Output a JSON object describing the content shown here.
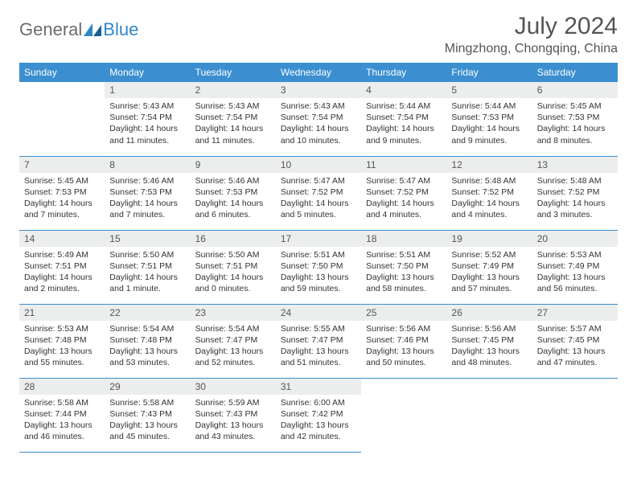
{
  "brand": {
    "text1": "General",
    "text2": "Blue"
  },
  "title": "July 2024",
  "location": "Mingzhong, Chongqing, China",
  "colors": {
    "header_bg": "#3b8fd0",
    "header_text": "#ffffff",
    "daynum_bg": "#eceded",
    "border": "#3b8fd0",
    "title_color": "#555555",
    "body_text": "#333333"
  },
  "weekdays": [
    "Sunday",
    "Monday",
    "Tuesday",
    "Wednesday",
    "Thursday",
    "Friday",
    "Saturday"
  ],
  "weeks": [
    [
      {
        "day": "",
        "lines": []
      },
      {
        "day": "1",
        "lines": [
          "Sunrise: 5:43 AM",
          "Sunset: 7:54 PM",
          "Daylight: 14 hours",
          "and 11 minutes."
        ]
      },
      {
        "day": "2",
        "lines": [
          "Sunrise: 5:43 AM",
          "Sunset: 7:54 PM",
          "Daylight: 14 hours",
          "and 11 minutes."
        ]
      },
      {
        "day": "3",
        "lines": [
          "Sunrise: 5:43 AM",
          "Sunset: 7:54 PM",
          "Daylight: 14 hours",
          "and 10 minutes."
        ]
      },
      {
        "day": "4",
        "lines": [
          "Sunrise: 5:44 AM",
          "Sunset: 7:54 PM",
          "Daylight: 14 hours",
          "and 9 minutes."
        ]
      },
      {
        "day": "5",
        "lines": [
          "Sunrise: 5:44 AM",
          "Sunset: 7:53 PM",
          "Daylight: 14 hours",
          "and 9 minutes."
        ]
      },
      {
        "day": "6",
        "lines": [
          "Sunrise: 5:45 AM",
          "Sunset: 7:53 PM",
          "Daylight: 14 hours",
          "and 8 minutes."
        ]
      }
    ],
    [
      {
        "day": "7",
        "lines": [
          "Sunrise: 5:45 AM",
          "Sunset: 7:53 PM",
          "Daylight: 14 hours",
          "and 7 minutes."
        ]
      },
      {
        "day": "8",
        "lines": [
          "Sunrise: 5:46 AM",
          "Sunset: 7:53 PM",
          "Daylight: 14 hours",
          "and 7 minutes."
        ]
      },
      {
        "day": "9",
        "lines": [
          "Sunrise: 5:46 AM",
          "Sunset: 7:53 PM",
          "Daylight: 14 hours",
          "and 6 minutes."
        ]
      },
      {
        "day": "10",
        "lines": [
          "Sunrise: 5:47 AM",
          "Sunset: 7:52 PM",
          "Daylight: 14 hours",
          "and 5 minutes."
        ]
      },
      {
        "day": "11",
        "lines": [
          "Sunrise: 5:47 AM",
          "Sunset: 7:52 PM",
          "Daylight: 14 hours",
          "and 4 minutes."
        ]
      },
      {
        "day": "12",
        "lines": [
          "Sunrise: 5:48 AM",
          "Sunset: 7:52 PM",
          "Daylight: 14 hours",
          "and 4 minutes."
        ]
      },
      {
        "day": "13",
        "lines": [
          "Sunrise: 5:48 AM",
          "Sunset: 7:52 PM",
          "Daylight: 14 hours",
          "and 3 minutes."
        ]
      }
    ],
    [
      {
        "day": "14",
        "lines": [
          "Sunrise: 5:49 AM",
          "Sunset: 7:51 PM",
          "Daylight: 14 hours",
          "and 2 minutes."
        ]
      },
      {
        "day": "15",
        "lines": [
          "Sunrise: 5:50 AM",
          "Sunset: 7:51 PM",
          "Daylight: 14 hours",
          "and 1 minute."
        ]
      },
      {
        "day": "16",
        "lines": [
          "Sunrise: 5:50 AM",
          "Sunset: 7:51 PM",
          "Daylight: 14 hours",
          "and 0 minutes."
        ]
      },
      {
        "day": "17",
        "lines": [
          "Sunrise: 5:51 AM",
          "Sunset: 7:50 PM",
          "Daylight: 13 hours",
          "and 59 minutes."
        ]
      },
      {
        "day": "18",
        "lines": [
          "Sunrise: 5:51 AM",
          "Sunset: 7:50 PM",
          "Daylight: 13 hours",
          "and 58 minutes."
        ]
      },
      {
        "day": "19",
        "lines": [
          "Sunrise: 5:52 AM",
          "Sunset: 7:49 PM",
          "Daylight: 13 hours",
          "and 57 minutes."
        ]
      },
      {
        "day": "20",
        "lines": [
          "Sunrise: 5:53 AM",
          "Sunset: 7:49 PM",
          "Daylight: 13 hours",
          "and 56 minutes."
        ]
      }
    ],
    [
      {
        "day": "21",
        "lines": [
          "Sunrise: 5:53 AM",
          "Sunset: 7:48 PM",
          "Daylight: 13 hours",
          "and 55 minutes."
        ]
      },
      {
        "day": "22",
        "lines": [
          "Sunrise: 5:54 AM",
          "Sunset: 7:48 PM",
          "Daylight: 13 hours",
          "and 53 minutes."
        ]
      },
      {
        "day": "23",
        "lines": [
          "Sunrise: 5:54 AM",
          "Sunset: 7:47 PM",
          "Daylight: 13 hours",
          "and 52 minutes."
        ]
      },
      {
        "day": "24",
        "lines": [
          "Sunrise: 5:55 AM",
          "Sunset: 7:47 PM",
          "Daylight: 13 hours",
          "and 51 minutes."
        ]
      },
      {
        "day": "25",
        "lines": [
          "Sunrise: 5:56 AM",
          "Sunset: 7:46 PM",
          "Daylight: 13 hours",
          "and 50 minutes."
        ]
      },
      {
        "day": "26",
        "lines": [
          "Sunrise: 5:56 AM",
          "Sunset: 7:45 PM",
          "Daylight: 13 hours",
          "and 48 minutes."
        ]
      },
      {
        "day": "27",
        "lines": [
          "Sunrise: 5:57 AM",
          "Sunset: 7:45 PM",
          "Daylight: 13 hours",
          "and 47 minutes."
        ]
      }
    ],
    [
      {
        "day": "28",
        "lines": [
          "Sunrise: 5:58 AM",
          "Sunset: 7:44 PM",
          "Daylight: 13 hours",
          "and 46 minutes."
        ]
      },
      {
        "day": "29",
        "lines": [
          "Sunrise: 5:58 AM",
          "Sunset: 7:43 PM",
          "Daylight: 13 hours",
          "and 45 minutes."
        ]
      },
      {
        "day": "30",
        "lines": [
          "Sunrise: 5:59 AM",
          "Sunset: 7:43 PM",
          "Daylight: 13 hours",
          "and 43 minutes."
        ]
      },
      {
        "day": "31",
        "lines": [
          "Sunrise: 6:00 AM",
          "Sunset: 7:42 PM",
          "Daylight: 13 hours",
          "and 42 minutes."
        ]
      },
      {
        "day": "",
        "lines": []
      },
      {
        "day": "",
        "lines": []
      },
      {
        "day": "",
        "lines": []
      }
    ]
  ]
}
